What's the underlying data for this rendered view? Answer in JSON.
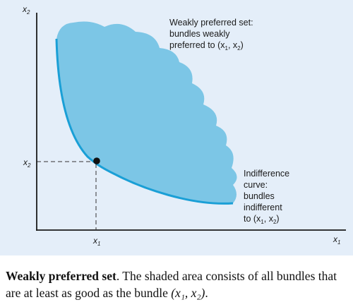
{
  "axes": {
    "x_label_main": "x",
    "x_label_sub": "1",
    "y_label_main": "x",
    "y_label_sub": "2",
    "x_tick_main": "x",
    "x_tick_sub": "1",
    "y_tick_main": "x",
    "y_tick_sub": "2"
  },
  "annotations": {
    "preferred_set": {
      "line1": "Weakly preferred set:",
      "line2": "bundles weakly",
      "line3_text": "preferred to (x",
      "line3_sub1": "1",
      "line3_mid": ", x",
      "line3_sub2": "2",
      "line3_end": ")"
    },
    "indifference_curve": {
      "line1": "Indifference",
      "line2": "curve:",
      "line3": "bundles",
      "line4": "indifferent",
      "line5_text": "to (x",
      "line5_sub1": "1",
      "line5_mid": ", x",
      "line5_sub2": "2",
      "line5_end": ")"
    }
  },
  "caption": {
    "title": "Weakly preferred set",
    "body_prefix": ". The shaded area consists of all bundles that are at least as good as the bundle ",
    "bundle": "(x₁, x₂)",
    "body_suffix": "."
  },
  "colors": {
    "panel_background": "#e4eef9",
    "shaded_region": "#7cc6e6",
    "curve": "#1a9fd6",
    "axes": "#1a1a1a",
    "point": "#111111"
  }
}
